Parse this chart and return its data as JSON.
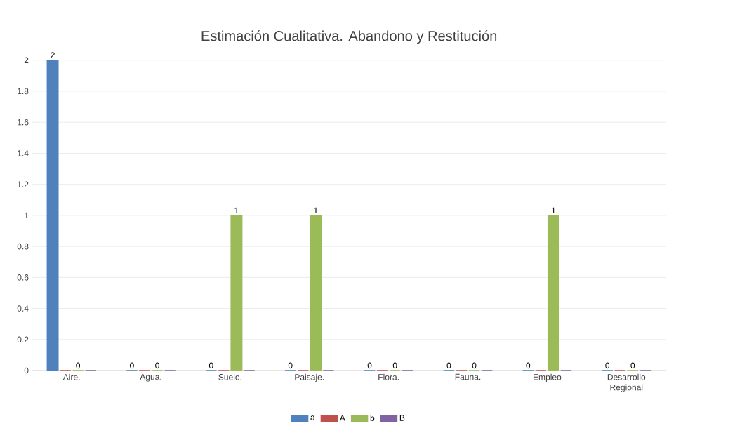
{
  "chart_data": {
    "type": "bar",
    "title": "Estimación Cualitativa. Abandono y Restitución",
    "categories": [
      "Aire.",
      "Agua.",
      "Suelo.",
      "Paisaje.",
      "Flora.",
      "Fauna.",
      "Empleo",
      "Desarrollo Regional"
    ],
    "series": [
      {
        "name": "a",
        "color": "#4f81bd",
        "values": [
          2,
          0,
          0,
          0,
          0,
          0,
          0,
          0
        ],
        "value_labels": [
          "2",
          "0",
          "0",
          "0",
          "0",
          "0",
          "0",
          "0"
        ]
      },
      {
        "name": "A",
        "color": "#c0504d",
        "values": [
          0,
          0,
          0,
          0,
          0,
          0,
          0,
          0
        ]
      },
      {
        "name": "b",
        "color": "#9bbb59",
        "values": [
          0,
          0,
          1,
          1,
          0,
          0,
          1,
          0
        ],
        "value_labels": [
          "0",
          "0",
          "1",
          "1",
          "0",
          "0",
          "1",
          "0"
        ]
      },
      {
        "name": "B",
        "color": "#8064a2",
        "values": [
          0,
          0,
          0,
          0,
          0,
          0,
          0,
          0
        ]
      }
    ],
    "ylim": [
      0,
      2
    ],
    "yticks": [
      0,
      0.2,
      0.4,
      0.6,
      0.8,
      1,
      1.2,
      1.4,
      1.6,
      1.8,
      2
    ],
    "grid": "y",
    "legend": "bottom"
  }
}
